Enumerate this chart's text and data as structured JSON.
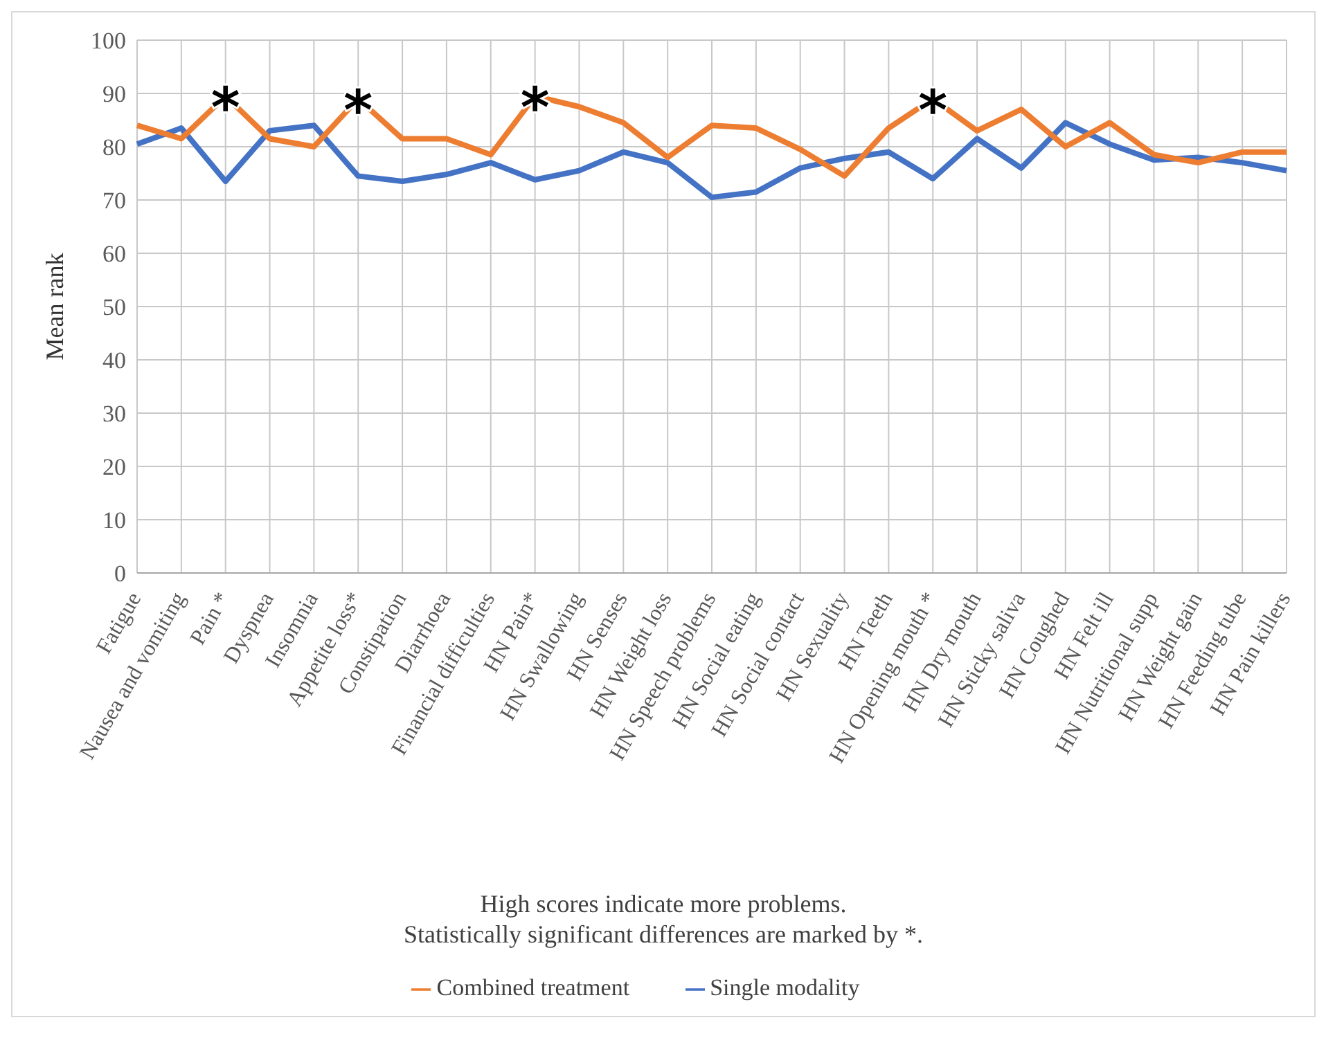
{
  "chart_data": {
    "type": "line",
    "ylabel": "Mean rank",
    "categories": [
      "Fatigue",
      "Nausea and vomiting",
      "Pain *",
      "Dyspnea",
      "Insomnia",
      "Appetite loss*",
      "Constipation",
      "Diarrhoea",
      "Financial difficulties",
      "HN Pain*",
      "HN Swallowing",
      "HN Senses",
      "HN Weight loss",
      "HN Speech problems",
      "HN Social eating",
      "HN Social contact",
      "HN Sexuality",
      "HN Teeth",
      "HN Opening mouth *",
      "HN Dry mouth",
      "HN Sticky saliva",
      "HN Coughed",
      "HN Felt ill",
      "HN Nutritional supp",
      "HN Weight gain",
      "HN Feeding tube",
      "HN Pain killers"
    ],
    "series": [
      {
        "name": "Single modality",
        "color": "#4472c4",
        "values": [
          80.5,
          83.5,
          73.5,
          83,
          84,
          74.5,
          73.5,
          74.8,
          77,
          73.8,
          75.5,
          79,
          77,
          70.5,
          71.5,
          76,
          77.8,
          79,
          74,
          81.5,
          76,
          84.5,
          80.5,
          77.5,
          78,
          77,
          75.5
        ]
      },
      {
        "name": "Combined treatment",
        "color": "#ed7d31",
        "values": [
          84,
          81.5,
          89.5,
          81.5,
          80,
          89,
          81.5,
          81.5,
          78.5,
          89.5,
          87.5,
          84.5,
          78,
          84,
          83.5,
          79.5,
          74.5,
          83.5,
          89,
          83,
          87,
          80,
          84.5,
          78.5,
          77,
          79,
          79
        ]
      }
    ],
    "ylim": [
      0,
      100
    ],
    "yticks": [
      0,
      10,
      20,
      30,
      40,
      50,
      60,
      70,
      80,
      90,
      100
    ],
    "grid": true,
    "legend": "bottom",
    "marker": "none",
    "line_style": "solid",
    "annotations": [
      {
        "text": "*",
        "x": "Pain *",
        "y": 89.5
      },
      {
        "text": "*",
        "x": "Appetite loss*",
        "y": 89
      },
      {
        "text": "*",
        "x": "HN Pain*",
        "y": 89.5
      },
      {
        "text": "*",
        "x": "HN Opening mouth *",
        "y": 89
      },
      "High scores indicate more problems.",
      "Statistically significant differences are marked by *."
    ]
  }
}
